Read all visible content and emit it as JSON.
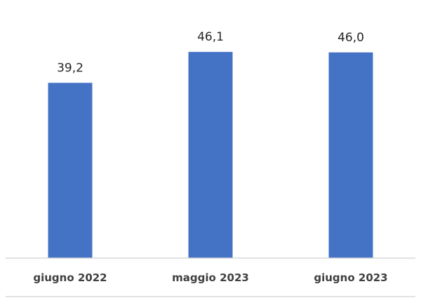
{
  "chart_data": {
    "type": "bar",
    "categories": [
      "giugno 2022",
      "maggio 2023",
      "giugno 2023"
    ],
    "values": [
      39.2,
      46.1,
      46.0
    ],
    "data_labels": [
      "39,2",
      "46,1",
      "46,0"
    ],
    "ylim": [
      0,
      51.3
    ],
    "grid": false,
    "legend": "none",
    "bar_color": "#4472c4"
  }
}
